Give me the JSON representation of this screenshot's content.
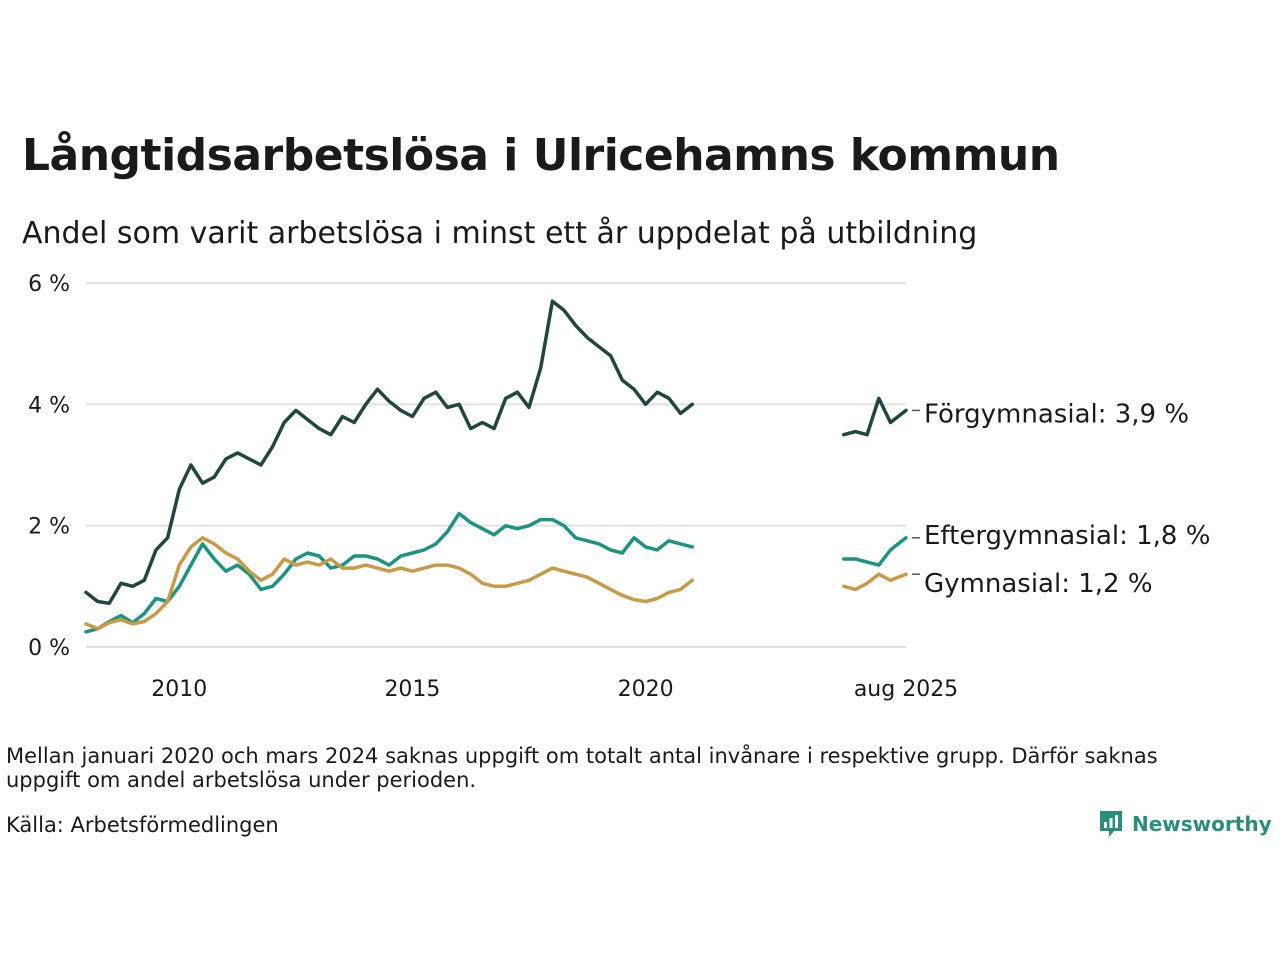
{
  "title": "Långtidsarbetslösa i Ulricehamns kommun",
  "subtitle": "Andel som varit arbetslösa i minst ett år uppdelat på utbildning",
  "note": "Mellan januari 2020 och mars 2024 saknas uppgift om totalt antal invånare i respektive grupp. Därför saknas uppgift om andel arbetslösa under perioden.",
  "source": "Källa: Arbetsförmedlingen",
  "brand": "Newsworthy",
  "chart_data": {
    "type": "line",
    "title": "Långtidsarbetslösa i Ulricehamns kommun",
    "subtitle": "Andel som varit arbetslösa i minst ett år uppdelat på utbildning",
    "xlabel": "",
    "ylabel": "",
    "y_unit": "%",
    "ylim": [
      0,
      6
    ],
    "yticks": [
      {
        "v": 0,
        "label": "0 %"
      },
      {
        "v": 2,
        "label": "2 %"
      },
      {
        "v": 4,
        "label": "4 %"
      },
      {
        "v": 6,
        "label": "6 %"
      }
    ],
    "xlim": [
      "2008-01",
      "2025-08"
    ],
    "xticks": [
      {
        "d": "2010-01",
        "label": "2010"
      },
      {
        "d": "2015-01",
        "label": "2015"
      },
      {
        "d": "2020-01",
        "label": "2020"
      },
      {
        "d": "2025-08",
        "label": "aug 2025"
      }
    ],
    "grid": true,
    "legend": "direct labels at line ends",
    "series": [
      {
        "name": "Förgymnasial",
        "end_label": "Förgymnasial: 3,9 %",
        "color": "#20463f",
        "points": [
          [
            "2008-01",
            0.9
          ],
          [
            "2008-04",
            0.75
          ],
          [
            "2008-07",
            0.72
          ],
          [
            "2008-10",
            1.05
          ],
          [
            "2009-01",
            1.0
          ],
          [
            "2009-04",
            1.1
          ],
          [
            "2009-07",
            1.6
          ],
          [
            "2009-10",
            1.8
          ],
          [
            "2010-01",
            2.6
          ],
          [
            "2010-04",
            3.0
          ],
          [
            "2010-07",
            2.7
          ],
          [
            "2010-10",
            2.8
          ],
          [
            "2011-01",
            3.1
          ],
          [
            "2011-04",
            3.2
          ],
          [
            "2011-07",
            3.1
          ],
          [
            "2011-10",
            3.0
          ],
          [
            "2012-01",
            3.3
          ],
          [
            "2012-04",
            3.7
          ],
          [
            "2012-07",
            3.9
          ],
          [
            "2012-10",
            3.75
          ],
          [
            "2013-01",
            3.6
          ],
          [
            "2013-04",
            3.5
          ],
          [
            "2013-07",
            3.8
          ],
          [
            "2013-10",
            3.7
          ],
          [
            "2014-01",
            4.0
          ],
          [
            "2014-04",
            4.25
          ],
          [
            "2014-07",
            4.05
          ],
          [
            "2014-10",
            3.9
          ],
          [
            "2015-01",
            3.8
          ],
          [
            "2015-04",
            4.1
          ],
          [
            "2015-07",
            4.2
          ],
          [
            "2015-10",
            3.95
          ],
          [
            "2016-01",
            4.0
          ],
          [
            "2016-04",
            3.6
          ],
          [
            "2016-07",
            3.7
          ],
          [
            "2016-10",
            3.6
          ],
          [
            "2017-01",
            4.1
          ],
          [
            "2017-04",
            4.2
          ],
          [
            "2017-07",
            3.95
          ],
          [
            "2017-10",
            4.6
          ],
          [
            "2018-01",
            5.7
          ],
          [
            "2018-04",
            5.55
          ],
          [
            "2018-07",
            5.3
          ],
          [
            "2018-10",
            5.1
          ],
          [
            "2019-01",
            4.95
          ],
          [
            "2019-04",
            4.8
          ],
          [
            "2019-07",
            4.4
          ],
          [
            "2019-10",
            4.25
          ],
          [
            "2020-01",
            4.0
          ],
          [
            "2020-04",
            4.2
          ],
          [
            "2020-07",
            4.1
          ],
          [
            "2020-10",
            3.85
          ],
          [
            "2021-01",
            4.0
          ],
          null,
          [
            "2024-04",
            3.5
          ],
          [
            "2024-07",
            3.55
          ],
          [
            "2024-10",
            3.5
          ],
          [
            "2025-01",
            4.1
          ],
          [
            "2025-04",
            3.7
          ],
          [
            "2025-08",
            3.9
          ]
        ]
      },
      {
        "name": "Eftergymnasial",
        "end_label": "Eftergymnasial: 1,8 %",
        "color": "#1b9480",
        "points": [
          [
            "2008-01",
            0.25
          ],
          [
            "2008-04",
            0.3
          ],
          [
            "2008-07",
            0.42
          ],
          [
            "2008-10",
            0.52
          ],
          [
            "2009-01",
            0.4
          ],
          [
            "2009-04",
            0.55
          ],
          [
            "2009-07",
            0.8
          ],
          [
            "2009-10",
            0.75
          ],
          [
            "2010-01",
            1.0
          ],
          [
            "2010-04",
            1.35
          ],
          [
            "2010-07",
            1.7
          ],
          [
            "2010-10",
            1.45
          ],
          [
            "2011-01",
            1.25
          ],
          [
            "2011-04",
            1.35
          ],
          [
            "2011-07",
            1.2
          ],
          [
            "2011-10",
            0.95
          ],
          [
            "2012-01",
            1.0
          ],
          [
            "2012-04",
            1.2
          ],
          [
            "2012-07",
            1.45
          ],
          [
            "2012-10",
            1.55
          ],
          [
            "2013-01",
            1.5
          ],
          [
            "2013-04",
            1.3
          ],
          [
            "2013-07",
            1.35
          ],
          [
            "2013-10",
            1.5
          ],
          [
            "2014-01",
            1.5
          ],
          [
            "2014-04",
            1.45
          ],
          [
            "2014-07",
            1.35
          ],
          [
            "2014-10",
            1.5
          ],
          [
            "2015-01",
            1.55
          ],
          [
            "2015-04",
            1.6
          ],
          [
            "2015-07",
            1.7
          ],
          [
            "2015-10",
            1.9
          ],
          [
            "2016-01",
            2.2
          ],
          [
            "2016-04",
            2.05
          ],
          [
            "2016-07",
            1.95
          ],
          [
            "2016-10",
            1.85
          ],
          [
            "2017-01",
            2.0
          ],
          [
            "2017-04",
            1.95
          ],
          [
            "2017-07",
            2.0
          ],
          [
            "2017-10",
            2.1
          ],
          [
            "2018-01",
            2.1
          ],
          [
            "2018-04",
            2.0
          ],
          [
            "2018-07",
            1.8
          ],
          [
            "2018-10",
            1.75
          ],
          [
            "2019-01",
            1.7
          ],
          [
            "2019-04",
            1.6
          ],
          [
            "2019-07",
            1.55
          ],
          [
            "2019-10",
            1.8
          ],
          [
            "2020-01",
            1.65
          ],
          [
            "2020-04",
            1.6
          ],
          [
            "2020-07",
            1.75
          ],
          [
            "2020-10",
            1.7
          ],
          [
            "2021-01",
            1.65
          ],
          null,
          [
            "2024-04",
            1.45
          ],
          [
            "2024-07",
            1.45
          ],
          [
            "2024-10",
            1.4
          ],
          [
            "2025-01",
            1.35
          ],
          [
            "2025-04",
            1.6
          ],
          [
            "2025-08",
            1.8
          ]
        ]
      },
      {
        "name": "Gymnasial",
        "end_label": "Gymnasial: 1,2 %",
        "color": "#c99a46",
        "points": [
          [
            "2008-01",
            0.38
          ],
          [
            "2008-04",
            0.3
          ],
          [
            "2008-07",
            0.4
          ],
          [
            "2008-10",
            0.45
          ],
          [
            "2009-01",
            0.38
          ],
          [
            "2009-04",
            0.42
          ],
          [
            "2009-07",
            0.55
          ],
          [
            "2009-10",
            0.75
          ],
          [
            "2010-01",
            1.35
          ],
          [
            "2010-04",
            1.65
          ],
          [
            "2010-07",
            1.8
          ],
          [
            "2010-10",
            1.7
          ],
          [
            "2011-01",
            1.55
          ],
          [
            "2011-04",
            1.45
          ],
          [
            "2011-07",
            1.25
          ],
          [
            "2011-10",
            1.1
          ],
          [
            "2012-01",
            1.2
          ],
          [
            "2012-04",
            1.45
          ],
          [
            "2012-07",
            1.35
          ],
          [
            "2012-10",
            1.4
          ],
          [
            "2013-01",
            1.35
          ],
          [
            "2013-04",
            1.45
          ],
          [
            "2013-07",
            1.3
          ],
          [
            "2013-10",
            1.3
          ],
          [
            "2014-01",
            1.35
          ],
          [
            "2014-04",
            1.3
          ],
          [
            "2014-07",
            1.25
          ],
          [
            "2014-10",
            1.3
          ],
          [
            "2015-01",
            1.25
          ],
          [
            "2015-04",
            1.3
          ],
          [
            "2015-07",
            1.35
          ],
          [
            "2015-10",
            1.35
          ],
          [
            "2016-01",
            1.3
          ],
          [
            "2016-04",
            1.2
          ],
          [
            "2016-07",
            1.05
          ],
          [
            "2016-10",
            1.0
          ],
          [
            "2017-01",
            1.0
          ],
          [
            "2017-04",
            1.05
          ],
          [
            "2017-07",
            1.1
          ],
          [
            "2017-10",
            1.2
          ],
          [
            "2018-01",
            1.3
          ],
          [
            "2018-04",
            1.25
          ],
          [
            "2018-07",
            1.2
          ],
          [
            "2018-10",
            1.15
          ],
          [
            "2019-01",
            1.05
          ],
          [
            "2019-04",
            0.95
          ],
          [
            "2019-07",
            0.85
          ],
          [
            "2019-10",
            0.78
          ],
          [
            "2020-01",
            0.75
          ],
          [
            "2020-04",
            0.8
          ],
          [
            "2020-07",
            0.9
          ],
          [
            "2020-10",
            0.95
          ],
          [
            "2021-01",
            1.1
          ],
          null,
          [
            "2024-04",
            1.0
          ],
          [
            "2024-07",
            0.95
          ],
          [
            "2024-10",
            1.05
          ],
          [
            "2025-01",
            1.2
          ],
          [
            "2025-04",
            1.1
          ],
          [
            "2025-08",
            1.2
          ]
        ]
      }
    ]
  }
}
